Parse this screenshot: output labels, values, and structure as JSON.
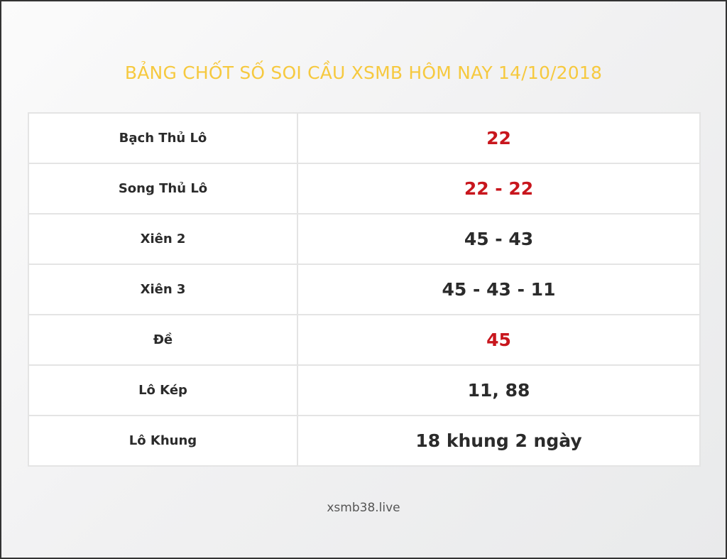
{
  "title": "BẢNG CHỐT SỐ SOI CẦU XSMB HÔM NAY 14/10/2018",
  "rows": [
    {
      "label": "Bạch Thủ Lô",
      "value": "22",
      "highlight": true
    },
    {
      "label": "Song Thủ Lô",
      "value": "22 - 22",
      "highlight": true
    },
    {
      "label": "Xiên 2",
      "value": "45 - 43",
      "highlight": false
    },
    {
      "label": "Xiên 3",
      "value": "45 - 43 - 11",
      "highlight": false
    },
    {
      "label": "Đề",
      "value": "45",
      "highlight": true
    },
    {
      "label": "Lô Kép",
      "value": "11, 88",
      "highlight": false
    },
    {
      "label": "Lô Khung",
      "value": "18 khung 2 ngày",
      "highlight": false
    }
  ],
  "footer": "xsmb38.live",
  "colors": {
    "title": "#f6c93f",
    "highlight": "#c8161d",
    "text": "#2b2b2b"
  }
}
